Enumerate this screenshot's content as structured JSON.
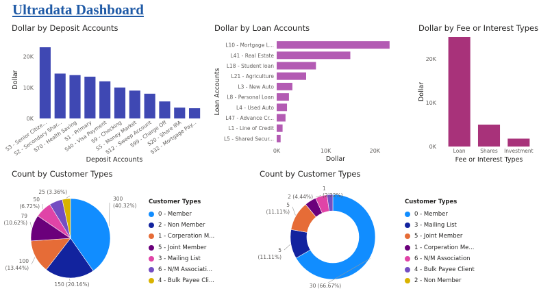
{
  "title": "Ultradata Dashboard",
  "colors": {
    "deposit": "#3f48b3",
    "loan": "#b35bb3",
    "fee": "#a8327a",
    "axis_text": "#605e5c",
    "grid": "#e8e8e8"
  },
  "chart_data": [
    {
      "id": "deposit",
      "type": "bar",
      "title": "Dollar by Deposit Accounts",
      "xlabel": "Deposit Accounts",
      "ylabel": "Dollar",
      "y_ticks": [
        0,
        10000,
        20000
      ],
      "y_tick_labels": [
        "0K",
        "10K",
        "20K"
      ],
      "ylim": [
        0,
        25000
      ],
      "categories": [
        "S3 - Senior Citize...",
        "S2 - Secondary Shar...",
        "S70 - Health Saving",
        "S1 - Primary",
        "S40 - Visa Payment",
        "S9 - Checking",
        "S5 - Money Market",
        "S12 - Sweep Account",
        "S99 - Charge Off",
        "S20 - Share IRA",
        "S32 - Mortgage Pay..."
      ],
      "values": [
        23000,
        14500,
        14000,
        13500,
        12000,
        10000,
        9000,
        8000,
        5500,
        3500,
        3300
      ],
      "grid": false
    },
    {
      "id": "loan",
      "type": "bar",
      "orientation": "horizontal",
      "title": "Dollar by Loan Accounts",
      "xlabel": "Dollar",
      "ylabel": "Loan Accounts",
      "x_ticks": [
        0,
        10000,
        20000
      ],
      "x_tick_labels": [
        "0K",
        "10K",
        "20K"
      ],
      "xlim": [
        0,
        24000
      ],
      "categories": [
        "L10 - Mortgage L...",
        "L41 - Real Estate",
        "L18 - Student loan",
        "L21 - Agriculture",
        "L3 - New Auto",
        "L8 - Personal Loan",
        "L4 - Used Auto",
        "L47 - Advance Cr...",
        "L1 - Line of Credit",
        "L5 - Shared Secur..."
      ],
      "values": [
        23000,
        15000,
        8000,
        6000,
        3200,
        2500,
        2100,
        1800,
        1200,
        800
      ],
      "grid": false
    },
    {
      "id": "fee",
      "type": "bar",
      "title": "Dollar by Fee or Interest Types",
      "xlabel": "Fee or Interest Types",
      "ylabel": "Dollar",
      "y_ticks": [
        0,
        10000,
        20000
      ],
      "y_tick_labels": [
        "0K",
        "10K",
        "20K"
      ],
      "ylim": [
        0,
        25000
      ],
      "categories": [
        "Loan",
        "Shares",
        "Investment"
      ],
      "values": [
        25000,
        5000,
        1800
      ],
      "grid": false
    },
    {
      "id": "pie1",
      "type": "pie",
      "title": "Count by Customer Types",
      "legend_title": "Customer Types",
      "legend_placement": "right",
      "slices": [
        {
          "label": "0 - Member",
          "value": 300,
          "text": "300",
          "pct": "(40.32%)",
          "color": "#118dff"
        },
        {
          "label": "2 - Non Member",
          "value": 150,
          "text": "150 (20.16%)",
          "pct": "",
          "color": "#12239e"
        },
        {
          "label": "1 - Corperation M...",
          "value": 100,
          "text": "100",
          "pct": "(13.44%)",
          "color": "#e66c37"
        },
        {
          "label": "5 - Joint Member",
          "value": 79,
          "text": "79",
          "pct": "(10.62%)",
          "color": "#6b007b"
        },
        {
          "label": "3 - Mailing List",
          "value": 50,
          "text": "50",
          "pct": "(6.72%)",
          "color": "#e044a7"
        },
        {
          "label": "6 - N/M Associati...",
          "value": 40,
          "text": "",
          "pct": "",
          "color": "#744ec2"
        },
        {
          "label": "4 - Bulk Payee Cli...",
          "value": 25,
          "text": "25 (3.36%)",
          "pct": "",
          "color": "#d9b300"
        }
      ]
    },
    {
      "id": "donut",
      "type": "pie",
      "hole": true,
      "title": "Count by Customer Types",
      "legend_title": "Customer Types",
      "legend_placement": "right",
      "slices": [
        {
          "label": "0 - Member",
          "value": 30,
          "text": "30 (66.67%)",
          "pct": "",
          "color": "#118dff"
        },
        {
          "label": "3 - Mailing List",
          "value": 5,
          "text": "5",
          "pct": "(11.11%)",
          "color": "#12239e"
        },
        {
          "label": "5 - Joint Member",
          "value": 5,
          "text": "5",
          "pct": "(11.11%)",
          "color": "#e66c37"
        },
        {
          "label": "1 - Corperation Me...",
          "value": 2,
          "text": "",
          "pct": "",
          "color": "#6b007b"
        },
        {
          "label": "6 - N/M Association",
          "value": 2,
          "text": "2 (4.44%)",
          "pct": "",
          "color": "#e044a7"
        },
        {
          "label": "4 - Bulk Payee Client",
          "value": 1,
          "text": "1",
          "pct": "(2.22%)",
          "color": "#744ec2"
        },
        {
          "label": "2 - Non Member",
          "value": 0,
          "text": "",
          "pct": "",
          "color": "#d9b300"
        }
      ]
    }
  ]
}
